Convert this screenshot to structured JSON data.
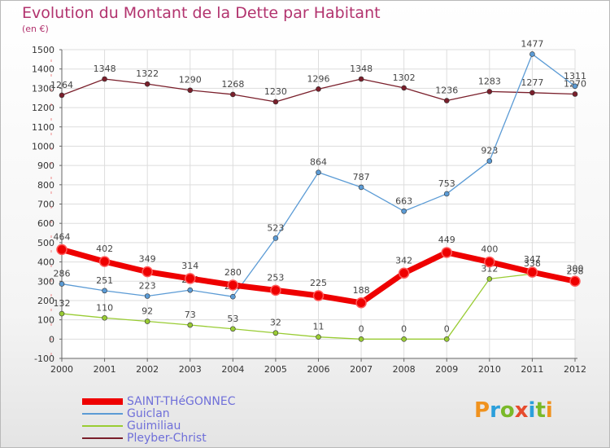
{
  "title": "Evolution du Montant de la Dette par Habitant",
  "subtitle": "(en €)",
  "chart_data": {
    "type": "line",
    "x": [
      "2000",
      "2001",
      "2002",
      "2003",
      "2004",
      "2005",
      "2006",
      "2007",
      "2008",
      "2009",
      "2010",
      "2011",
      "2012"
    ],
    "ylim": [
      -100,
      1500
    ],
    "yticks": [
      -100,
      0,
      100,
      200,
      300,
      400,
      500,
      600,
      700,
      800,
      900,
      1000,
      1100,
      1200,
      1300,
      1400,
      1500
    ],
    "grid": true,
    "legend_position": "bottom-left",
    "series": [
      {
        "name": "SAINT-THéGONNEC",
        "color": "#ee0000",
        "values": [
          464,
          402,
          349,
          314,
          280,
          253,
          225,
          188,
          342,
          449,
          400,
          347,
          300
        ]
      },
      {
        "name": "Guiclan",
        "color": "#5b9bd5",
        "values": [
          286,
          251,
          223,
          254,
          220,
          523,
          864,
          787,
          663,
          753,
          923,
          1477,
          1311
        ]
      },
      {
        "name": "Guimiliau",
        "color": "#99cc33",
        "values": [
          132,
          110,
          92,
          73,
          53,
          32,
          11,
          0,
          0,
          0,
          312,
          338,
          298
        ]
      },
      {
        "name": "Pleyber-Christ",
        "color": "#7a1f2b",
        "values": [
          1264,
          1348,
          1322,
          1290,
          1268,
          1230,
          1296,
          1348,
          1302,
          1236,
          1283,
          1277,
          1270
        ]
      }
    ]
  },
  "logo": {
    "letters": [
      "P",
      "r",
      "o",
      "x",
      "i",
      "t",
      "i"
    ],
    "colors": [
      "#f0921e",
      "#2b9fdb",
      "#7ab929",
      "#e64b2d",
      "#2b9fdb",
      "#7ab929",
      "#f0921e"
    ]
  }
}
